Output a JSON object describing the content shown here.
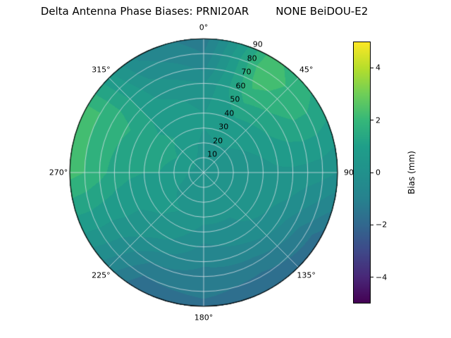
{
  "figure": {
    "background": "#ffffff"
  },
  "chart_data": {
    "type": "heatmap",
    "projection": "polar",
    "title": "Delta Antenna Phase Biases: PRNI20AR        NONE BeiDOU-E2",
    "angular_unit": "degrees",
    "angular_tick_labels": [
      "0°",
      "45°",
      "90",
      "135°",
      "180°",
      "225°",
      "270°",
      "315°"
    ],
    "angular_tick_angles": [
      0,
      45,
      90,
      135,
      180,
      225,
      270,
      315
    ],
    "radial_ticks": [
      10,
      20,
      30,
      40,
      50,
      60,
      70,
      80,
      90
    ],
    "radial_tick_labels": [
      "10",
      "20",
      "30",
      "40",
      "50",
      "60",
      "70",
      "80",
      "90"
    ],
    "radial_max": 90,
    "radial_label_azimuth_deg": 22.5,
    "gridlines": {
      "radial_step": 10,
      "angular_step_deg": 45,
      "color": "#e8e8f0"
    },
    "colorbar": {
      "label": "Bias (mm)",
      "ticks": [
        4,
        2,
        0,
        -2,
        -4
      ],
      "vmin": -5,
      "vmax": 5
    },
    "colormap_name": "viridis",
    "colormap": [
      "#440154",
      "#482878",
      "#3e4989",
      "#31688e",
      "#26828e",
      "#21918c",
      "#1f9e89",
      "#35b779",
      "#6ece58",
      "#b5de2b",
      "#fde725"
    ],
    "contour_level_step": 0.5,
    "grid": {
      "azimuths_deg": [
        0,
        30,
        60,
        90,
        120,
        150,
        180,
        210,
        240,
        270,
        300,
        330
      ],
      "radii": [
        0,
        10,
        20,
        30,
        40,
        50,
        60,
        70,
        80,
        90
      ],
      "bias_mm": [
        [
          0.3,
          0.3,
          0.3,
          0.3,
          0.3,
          0.3,
          0.3,
          0.3,
          0.3,
          0.3,
          0.3,
          0.3
        ],
        [
          0.4,
          0.4,
          0.3,
          0.2,
          0.3,
          0.3,
          0.3,
          0.3,
          0.4,
          0.5,
          0.6,
          0.5
        ],
        [
          0.4,
          0.5,
          0.4,
          0.1,
          0.3,
          0.3,
          0.3,
          0.4,
          0.5,
          0.8,
          1.0,
          0.7
        ],
        [
          0.5,
          0.7,
          0.5,
          0.2,
          0.4,
          0.1,
          0.2,
          0.5,
          0.6,
          1.0,
          1.2,
          0.9
        ],
        [
          0.5,
          0.9,
          0.7,
          0.3,
          0.4,
          -0.1,
          -0.2,
          0.4,
          0.6,
          1.0,
          1.1,
          0.8
        ],
        [
          0.3,
          1.3,
          1.0,
          0.4,
          0.0,
          -0.3,
          -0.6,
          0.1,
          0.5,
          1.1,
          1.3,
          0.7
        ],
        [
          0.0,
          1.8,
          1.3,
          0.4,
          -0.3,
          -0.7,
          -0.9,
          -0.4,
          0.5,
          1.3,
          1.6,
          0.4
        ],
        [
          -0.6,
          2.2,
          1.5,
          0.3,
          -0.8,
          -1.2,
          -1.2,
          -1.0,
          0.4,
          1.7,
          1.9,
          0.1
        ],
        [
          -1.0,
          2.4,
          1.5,
          0.2,
          -1.3,
          -1.6,
          -1.4,
          -1.5,
          0.4,
          2.0,
          2.0,
          -0.3
        ],
        [
          -1.3,
          2.2,
          1.3,
          0.0,
          -1.8,
          -1.8,
          -1.6,
          -1.9,
          0.3,
          2.2,
          2.0,
          -0.6
        ]
      ]
    }
  }
}
